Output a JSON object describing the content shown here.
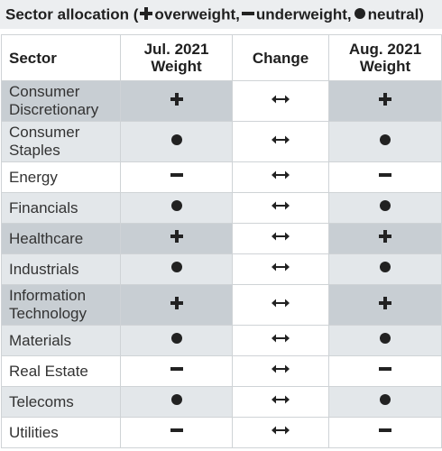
{
  "title": {
    "prefix": "Sector allocation (",
    "overweight": "overweight,",
    "underweight": "underweight,",
    "neutral": "neutral)"
  },
  "headers": {
    "sector": "Sector",
    "jul_line1": "Jul. 2021",
    "jul_line2": "Weight",
    "change": "Change",
    "aug_line1": "Aug. 2021",
    "aug_line2": "Weight"
  },
  "rows": [
    {
      "line1": "Consumer",
      "line2": "Discretionary",
      "jul": "overweight",
      "change": "unchanged",
      "aug": "overweight"
    },
    {
      "line1": "Consumer",
      "line2": "Staples",
      "jul": "neutral",
      "change": "unchanged",
      "aug": "neutral"
    },
    {
      "line1": "Energy",
      "line2": "",
      "jul": "underweight",
      "change": "unchanged",
      "aug": "underweight"
    },
    {
      "line1": "Financials",
      "line2": "",
      "jul": "neutral",
      "change": "unchanged",
      "aug": "neutral"
    },
    {
      "line1": "Healthcare",
      "line2": "",
      "jul": "overweight",
      "change": "unchanged",
      "aug": "overweight"
    },
    {
      "line1": "Industrials",
      "line2": "",
      "jul": "neutral",
      "change": "unchanged",
      "aug": "neutral"
    },
    {
      "line1": "Information",
      "line2": "Technology",
      "jul": "overweight",
      "change": "unchanged",
      "aug": "overweight"
    },
    {
      "line1": "Materials",
      "line2": "",
      "jul": "neutral",
      "change": "unchanged",
      "aug": "neutral"
    },
    {
      "line1": "Real Estate",
      "line2": "",
      "jul": "underweight",
      "change": "unchanged",
      "aug": "underweight"
    },
    {
      "line1": "Telecoms",
      "line2": "",
      "jul": "neutral",
      "change": "unchanged",
      "aug": "neutral"
    },
    {
      "line1": "Utilities",
      "line2": "",
      "jul": "underweight",
      "change": "unchanged",
      "aug": "underweight"
    }
  ],
  "colors": {
    "overweight_bg": "#c8ced3",
    "neutral_bg": "#e3e7ea",
    "underweight_bg": "#ffffff",
    "symbol": "#222222"
  },
  "icons": {
    "overweight": "plus-icon",
    "underweight": "minus-icon",
    "neutral": "dot-icon",
    "unchanged": "double-arrow-icon"
  }
}
